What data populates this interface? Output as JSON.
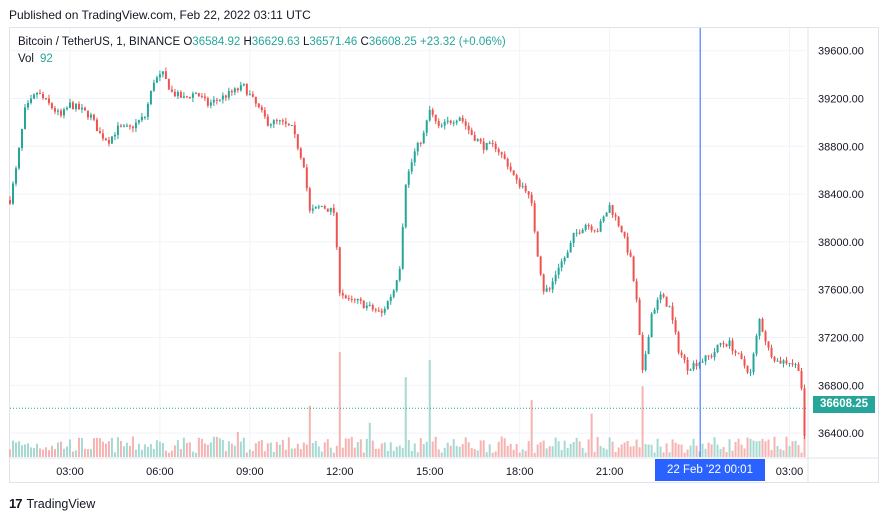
{
  "header": {
    "published": "Published on TradingView.com, Feb 22, 2022 03:11 UTC"
  },
  "legend": {
    "symbol": "Bitcoin / TetherUS, 1, BINANCE",
    "o_label": "O",
    "o_value": "36584.92",
    "h_label": "H",
    "h_value": "36629.63",
    "l_label": "L",
    "l_value": "36571.46",
    "c_label": "C",
    "c_value": "36608.25",
    "change": "+23.32 (+0.06%)",
    "vol_label": "Vol",
    "vol_value": "92"
  },
  "price_tag": "36608.25",
  "time_tag": "22 Feb '22   00:01",
  "footer": {
    "brand": "TradingView",
    "logo": "17"
  },
  "colors": {
    "up": "#26a69a",
    "down": "#ef5350",
    "crosshair": "#2962ff",
    "vol_up": "#a7d9d3",
    "vol_down": "#f5b3b1"
  },
  "chart_data": {
    "type": "candlestick",
    "title": "Bitcoin / TetherUS, 1, BINANCE",
    "y_ticks": [
      "39600.00",
      "39200.00",
      "38800.00",
      "38400.00",
      "38000.00",
      "37600.00",
      "37200.00",
      "36800.00",
      "36400.00"
    ],
    "y_tick_values": [
      39600,
      39200,
      38800,
      38400,
      38000,
      37600,
      37200,
      36800,
      36400
    ],
    "ylim": [
      36200,
      39790
    ],
    "x_ticks": [
      "03:00",
      "06:00",
      "09:00",
      "12:00",
      "15:00",
      "18:00",
      "21:00",
      "03:00"
    ],
    "x_tick_hours": [
      3,
      6,
      9,
      12,
      15,
      18,
      21,
      27
    ],
    "x_start_hour": 1.0,
    "x_end_hour": 27.55,
    "crosshair_hour": 24.02,
    "last_close": 36608.25,
    "price_path": [
      [
        1.0,
        38350
      ],
      [
        1.2,
        38600
      ],
      [
        1.5,
        39100
      ],
      [
        1.9,
        39250
      ],
      [
        2.3,
        39150
      ],
      [
        2.7,
        39050
      ],
      [
        3.0,
        39150
      ],
      [
        3.4,
        39100
      ],
      [
        3.7,
        39050
      ],
      [
        4.0,
        38900
      ],
      [
        4.3,
        38850
      ],
      [
        4.6,
        38950
      ],
      [
        5.0,
        38950
      ],
      [
        5.5,
        39050
      ],
      [
        5.8,
        39350
      ],
      [
        6.1,
        39400
      ],
      [
        6.4,
        39250
      ],
      [
        6.8,
        39200
      ],
      [
        7.2,
        39250
      ],
      [
        7.6,
        39150
      ],
      [
        8.0,
        39200
      ],
      [
        8.4,
        39250
      ],
      [
        8.8,
        39300
      ],
      [
        9.2,
        39150
      ],
      [
        9.6,
        39000
      ],
      [
        10.0,
        39000
      ],
      [
        10.4,
        38950
      ],
      [
        10.8,
        38650
      ],
      [
        11.0,
        38250
      ],
      [
        11.4,
        38300
      ],
      [
        11.8,
        38250
      ],
      [
        12.0,
        37600
      ],
      [
        12.3,
        37500
      ],
      [
        12.6,
        37500
      ],
      [
        13.0,
        37450
      ],
      [
        13.4,
        37400
      ],
      [
        13.8,
        37600
      ],
      [
        14.0,
        37800
      ],
      [
        14.2,
        38500
      ],
      [
        14.5,
        38750
      ],
      [
        14.8,
        38900
      ],
      [
        15.0,
        39100
      ],
      [
        15.3,
        38950
      ],
      [
        15.6,
        39000
      ],
      [
        16.0,
        39050
      ],
      [
        16.4,
        38900
      ],
      [
        16.8,
        38800
      ],
      [
        17.2,
        38800
      ],
      [
        17.6,
        38650
      ],
      [
        17.9,
        38500
      ],
      [
        18.2,
        38450
      ],
      [
        18.4,
        38300
      ],
      [
        18.6,
        37900
      ],
      [
        18.8,
        37600
      ],
      [
        19.0,
        37600
      ],
      [
        19.3,
        37800
      ],
      [
        19.6,
        37900
      ],
      [
        19.8,
        38050
      ],
      [
        20.2,
        38150
      ],
      [
        20.6,
        38100
      ],
      [
        20.8,
        38200
      ],
      [
        21.0,
        38300
      ],
      [
        21.4,
        38100
      ],
      [
        21.7,
        37850
      ],
      [
        21.9,
        37500
      ],
      [
        22.1,
        36900
      ],
      [
        22.4,
        37400
      ],
      [
        22.7,
        37550
      ],
      [
        23.0,
        37450
      ],
      [
        23.3,
        37100
      ],
      [
        23.6,
        36950
      ],
      [
        24.0,
        37000
      ],
      [
        24.4,
        37050
      ],
      [
        24.7,
        37150
      ],
      [
        25.0,
        37150
      ],
      [
        25.4,
        37000
      ],
      [
        25.7,
        36900
      ],
      [
        26.0,
        37350
      ],
      [
        26.3,
        37100
      ],
      [
        26.6,
        37000
      ],
      [
        27.0,
        37000
      ],
      [
        27.3,
        36950
      ],
      [
        27.45,
        36700
      ],
      [
        27.5,
        36350
      ],
      [
        27.55,
        36608
      ]
    ],
    "volume": {
      "typical": 12,
      "spikes": [
        [
          12.0,
          92
        ],
        [
          15.0,
          85
        ],
        [
          14.2,
          70
        ],
        [
          11.0,
          45
        ],
        [
          22.1,
          62
        ],
        [
          18.4,
          50
        ],
        [
          20.4,
          38
        ],
        [
          27.5,
          55
        ],
        [
          8.6,
          22
        ],
        [
          13.0,
          30
        ]
      ]
    }
  }
}
